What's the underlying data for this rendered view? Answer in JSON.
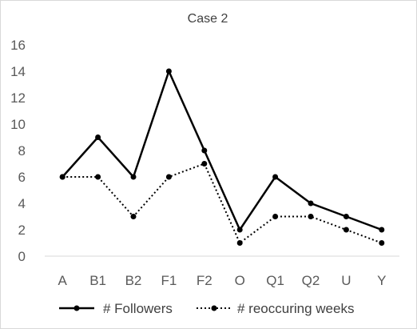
{
  "chart_data": {
    "type": "line",
    "title": "Case 2",
    "xlabel": "",
    "ylabel": "",
    "categories": [
      "A",
      "B1",
      "B2",
      "F1",
      "F2",
      "O",
      "Q1",
      "Q2",
      "U",
      "Y"
    ],
    "y_ticks": [
      "0",
      "2",
      "4",
      "6",
      "8",
      "10",
      "12",
      "14",
      "16"
    ],
    "ylim": [
      0,
      16
    ],
    "grid": false,
    "legend_position": "bottom",
    "series": [
      {
        "name": "# Followers",
        "style": "solid",
        "color": "#000000",
        "values": [
          6,
          9,
          6,
          14,
          8,
          2,
          6,
          4,
          3,
          2
        ]
      },
      {
        "name": "# reoccuring weeks",
        "style": "dotted",
        "color": "#000000",
        "values": [
          6,
          6,
          3,
          6,
          7,
          1,
          3,
          3,
          2,
          1
        ]
      }
    ]
  }
}
